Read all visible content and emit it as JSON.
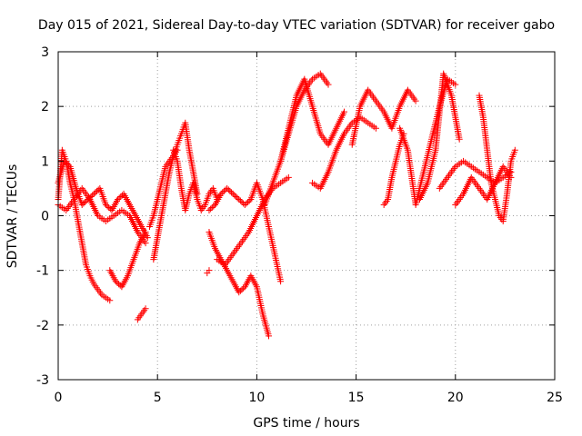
{
  "chart_data": {
    "type": "scatter",
    "title": "Day 015 of 2021, Sidereal Day-to-day VTEC variation (SDTVAR) for receiver gabo",
    "xlabel": "GPS time / hours",
    "ylabel": "SDTVAR / TECUs",
    "xlim": [
      0,
      25
    ],
    "ylim": [
      -3,
      3
    ],
    "xticks": [
      0,
      5,
      10,
      15,
      20,
      25
    ],
    "yticks": [
      -3,
      -2,
      -1,
      0,
      1,
      2,
      3
    ],
    "xtick_labels": [
      "0",
      "5",
      "10",
      "15",
      "20",
      "25"
    ],
    "ytick_labels": [
      "-3",
      "-2",
      "-1",
      "0",
      "1",
      "2",
      "3"
    ],
    "grid": true,
    "marker": "+",
    "color": "#ff0000",
    "series": [
      {
        "name": "trace-1",
        "x": [
          0.0,
          0.2,
          0.4,
          0.6,
          0.8,
          1.0,
          1.2,
          1.4,
          1.6,
          1.8,
          2.0,
          2.2,
          2.4,
          2.6
        ],
        "values": [
          0.3,
          1.2,
          1.0,
          0.6,
          0.3,
          -0.1,
          -0.5,
          -0.9,
          -1.1,
          -1.25,
          -1.35,
          -1.45,
          -1.5,
          -1.55
        ]
      },
      {
        "name": "trace-2",
        "x": [
          0.0,
          0.3,
          0.6,
          0.9,
          1.2,
          1.5,
          1.8,
          2.1,
          2.4,
          2.7,
          3.0,
          3.3,
          3.6,
          3.9,
          4.2,
          4.5
        ],
        "values": [
          0.6,
          1.0,
          0.9,
          0.5,
          0.2,
          0.3,
          0.4,
          0.5,
          0.2,
          0.1,
          0.3,
          0.4,
          0.2,
          0.0,
          -0.2,
          -0.4
        ]
      },
      {
        "name": "trace-3",
        "x": [
          0.0,
          0.4,
          0.8,
          1.2,
          1.6,
          2.0,
          2.4,
          2.8,
          3.2,
          3.6,
          4.0,
          4.4
        ],
        "values": [
          0.2,
          0.1,
          0.3,
          0.5,
          0.3,
          0.0,
          -0.1,
          0.0,
          0.1,
          0.0,
          -0.3,
          -0.5
        ]
      },
      {
        "name": "trace-4",
        "x": [
          2.6,
          2.9,
          3.2,
          3.5,
          3.8,
          4.1,
          4.4
        ],
        "values": [
          -1.0,
          -1.2,
          -1.3,
          -1.1,
          -0.8,
          -0.5,
          -0.3
        ]
      },
      {
        "name": "trace-5",
        "x": [
          4.0,
          4.2,
          4.4
        ],
        "values": [
          -1.9,
          -1.8,
          -1.7
        ]
      },
      {
        "name": "trace-6",
        "x": [
          4.6,
          4.8,
          5.0,
          5.2,
          5.4,
          5.6,
          5.8,
          6.0
        ],
        "values": [
          -0.2,
          0.0,
          0.3,
          0.6,
          0.9,
          1.0,
          1.1,
          1.2
        ]
      },
      {
        "name": "trace-7",
        "x": [
          4.8,
          5.0,
          5.2,
          5.4,
          5.6,
          5.8,
          6.0,
          6.2,
          6.4,
          6.6,
          6.8,
          7.0
        ],
        "values": [
          -0.8,
          -0.4,
          0.0,
          0.4,
          0.8,
          1.1,
          1.3,
          1.5,
          1.7,
          1.2,
          0.8,
          0.4
        ]
      },
      {
        "name": "trace-8",
        "x": [
          5.8,
          6.0,
          6.2,
          6.4,
          6.6,
          6.8,
          7.0,
          7.2,
          7.4,
          7.6,
          7.8,
          8.0
        ],
        "values": [
          1.2,
          1.0,
          0.5,
          0.1,
          0.4,
          0.6,
          0.3,
          0.1,
          0.2,
          0.4,
          0.5,
          0.3
        ]
      },
      {
        "name": "trace-9",
        "x": [
          7.6,
          7.9,
          8.2,
          8.5,
          8.8,
          9.1,
          9.4,
          9.7,
          10.0,
          10.3,
          10.6
        ],
        "values": [
          -0.3,
          -0.6,
          -0.8,
          -1.0,
          -1.2,
          -1.4,
          -1.3,
          -1.1,
          -1.3,
          -1.8,
          -2.2
        ]
      },
      {
        "name": "trace-10",
        "x": [
          7.6,
          7.9,
          8.2,
          8.5,
          8.8,
          9.1,
          9.4,
          9.7,
          10.0,
          10.3,
          10.6,
          10.9,
          11.2
        ],
        "values": [
          0.1,
          0.2,
          0.4,
          0.5,
          0.4,
          0.3,
          0.2,
          0.3,
          0.6,
          0.3,
          -0.2,
          -0.7,
          -1.2
        ]
      },
      {
        "name": "trace-11",
        "x": [
          8.0,
          8.4,
          8.8,
          9.2,
          9.6,
          10.0,
          10.4,
          10.8,
          11.2,
          11.6
        ],
        "values": [
          -0.8,
          -0.9,
          -0.7,
          -0.5,
          -0.3,
          0.0,
          0.3,
          0.5,
          0.6,
          0.7
        ]
      },
      {
        "name": "trace-12",
        "x": [
          10.4,
          10.8,
          11.2,
          11.6,
          12.0,
          12.4,
          12.8,
          13.2,
          13.6
        ],
        "values": [
          0.2,
          0.6,
          1.0,
          1.5,
          2.0,
          2.3,
          2.5,
          2.6,
          2.4
        ]
      },
      {
        "name": "trace-13",
        "x": [
          11.2,
          11.6,
          12.0,
          12.4,
          12.8,
          13.2,
          13.6,
          14.0,
          14.4
        ],
        "values": [
          1.0,
          1.6,
          2.2,
          2.5,
          2.0,
          1.5,
          1.3,
          1.6,
          1.9
        ]
      },
      {
        "name": "trace-14",
        "x": [
          12.8,
          13.2,
          13.6,
          14.0,
          14.4,
          14.8,
          15.2,
          15.6,
          16.0
        ],
        "values": [
          0.6,
          0.5,
          0.8,
          1.2,
          1.5,
          1.7,
          1.8,
          1.7,
          1.6
        ]
      },
      {
        "name": "trace-15",
        "x": [
          14.8,
          15.2,
          15.6,
          16.0,
          16.4,
          16.8,
          17.2,
          17.6,
          18.0
        ],
        "values": [
          1.3,
          2.0,
          2.3,
          2.1,
          1.9,
          1.6,
          2.0,
          2.3,
          2.1
        ]
      },
      {
        "name": "trace-16",
        "x": [
          16.4,
          16.6,
          16.8,
          17.0,
          17.2,
          17.4
        ],
        "values": [
          0.2,
          0.3,
          0.7,
          1.0,
          1.3,
          1.5
        ]
      },
      {
        "name": "trace-17",
        "x": [
          17.2,
          17.6,
          18.0,
          18.4,
          18.8,
          19.2,
          19.6,
          20.0
        ],
        "values": [
          1.6,
          1.2,
          0.2,
          0.8,
          1.4,
          2.0,
          2.5,
          2.4
        ]
      },
      {
        "name": "trace-18",
        "x": [
          18.2,
          18.6,
          19.0,
          19.4,
          19.8,
          20.2
        ],
        "values": [
          0.3,
          0.6,
          1.2,
          2.6,
          2.2,
          1.4
        ]
      },
      {
        "name": "trace-19",
        "x": [
          19.2,
          19.6,
          20.0,
          20.4,
          20.8,
          21.2,
          21.6,
          22.0,
          22.4,
          22.8
        ],
        "values": [
          0.5,
          0.7,
          0.9,
          1.0,
          0.9,
          0.8,
          0.7,
          0.6,
          0.7,
          0.8
        ]
      },
      {
        "name": "trace-20",
        "x": [
          21.2,
          21.4,
          21.6,
          21.8,
          22.0,
          22.2,
          22.4,
          22.6,
          22.8,
          23.0
        ],
        "values": [
          2.2,
          1.8,
          1.2,
          0.6,
          0.3,
          0.0,
          -0.1,
          0.4,
          1.0,
          1.2
        ]
      },
      {
        "name": "trace-21",
        "x": [
          20.0,
          20.4,
          20.8,
          21.2,
          21.6,
          22.0,
          22.4,
          22.8
        ],
        "values": [
          0.2,
          0.4,
          0.7,
          0.5,
          0.3,
          0.6,
          0.9,
          0.7
        ]
      },
      {
        "name": "trace-22",
        "x": [
          7.5,
          7.6
        ],
        "values": [
          -1.05,
          -1.0
        ]
      }
    ]
  }
}
